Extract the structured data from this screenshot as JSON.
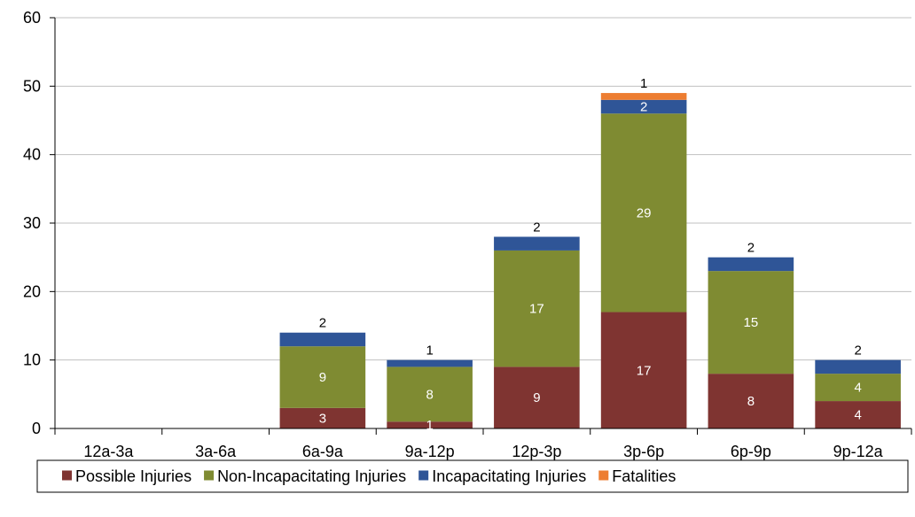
{
  "chart_data": {
    "type": "bar",
    "stacked": true,
    "categories": [
      "12a-3a",
      "3a-6a",
      "6a-9a",
      "9a-12p",
      "12p-3p",
      "3p-6p",
      "6p-9p",
      "9p-12a"
    ],
    "series": [
      {
        "name": "Possible Injuries",
        "color": "#7f3431",
        "label_color": "#ffffff",
        "values": [
          0,
          0,
          3,
          1,
          9,
          17,
          8,
          4
        ]
      },
      {
        "name": "Non-Incapacitating Injuries",
        "color": "#7f8b32",
        "label_color": "#ffffff",
        "values": [
          0,
          0,
          9,
          8,
          17,
          29,
          15,
          4
        ]
      },
      {
        "name": "Incapacitating Injuries",
        "color": "#2f5597",
        "label_color": "#ffffff",
        "values": [
          0,
          0,
          2,
          1,
          2,
          2,
          2,
          2
        ]
      },
      {
        "name": "Fatalities",
        "color": "#ed7d31",
        "label_color": "#000000",
        "values": [
          0,
          0,
          0,
          0,
          0,
          1,
          0,
          0
        ]
      }
    ],
    "yticks": [
      "0",
      "10",
      "20",
      "30",
      "40",
      "50",
      "60"
    ],
    "ylim": [
      0,
      60
    ],
    "grid": true,
    "legend_position": "bottom"
  }
}
